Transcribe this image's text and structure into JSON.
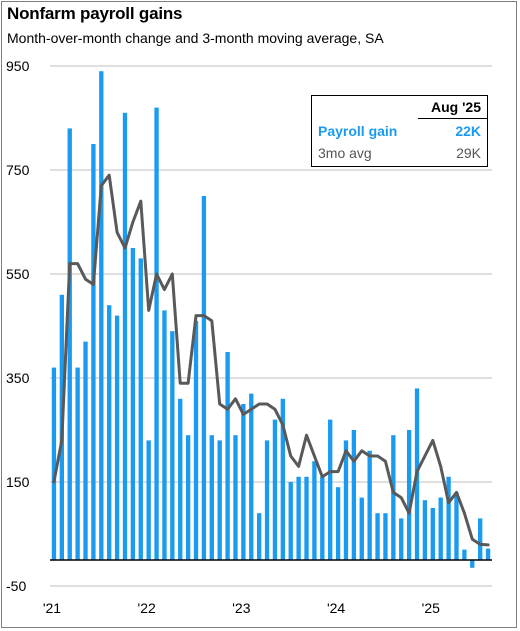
{
  "title": "Nonfarm payroll gains",
  "subtitle": "Month-over-month change and 3-month moving average, SA",
  "legend": {
    "header": "Aug '25",
    "rows": [
      {
        "label": "Payroll gain",
        "value": "22K"
      },
      {
        "label": "3mo avg",
        "value": "29K"
      }
    ]
  },
  "colors": {
    "bar": "#1a9bf0",
    "line": "#595959",
    "grid": "#bfbfbf",
    "axis": "#000000"
  },
  "chart_data": {
    "type": "bar",
    "title": "Nonfarm payroll gains",
    "subtitle": "Month-over-month change and 3-month moving average, SA",
    "ylim": [
      -50,
      950
    ],
    "yticks": [
      -50,
      150,
      350,
      550,
      750,
      950
    ],
    "xtick_labels": [
      "'21",
      "'22",
      "'23",
      "'24",
      "'25"
    ],
    "start_month": "2021-01",
    "grid": true,
    "legend_position": "top-right",
    "series": [
      {
        "name": "Payroll gain",
        "type": "bar",
        "values": [
          370,
          510,
          830,
          370,
          420,
          800,
          940,
          490,
          470,
          860,
          600,
          580,
          230,
          870,
          480,
          440,
          310,
          240,
          460,
          700,
          240,
          230,
          400,
          240,
          300,
          320,
          90,
          230,
          270,
          310,
          150,
          160,
          160,
          190,
          160,
          270,
          140,
          230,
          250,
          120,
          210,
          90,
          90,
          240,
          80,
          250,
          330,
          115,
          100,
          120,
          160,
          130,
          20,
          -15,
          80,
          22
        ]
      },
      {
        "name": "3mo avg",
        "type": "line",
        "values": [
          150,
          230,
          570,
          570,
          540,
          530,
          720,
          740,
          630,
          600,
          650,
          690,
          480,
          550,
          520,
          550,
          340,
          340,
          470,
          470,
          460,
          300,
          290,
          310,
          280,
          290,
          300,
          300,
          290,
          260,
          200,
          180,
          240,
          200,
          160,
          170,
          170,
          210,
          190,
          210,
          200,
          200,
          190,
          130,
          120,
          90,
          170,
          200,
          230,
          180,
          110,
          130,
          90,
          40,
          30,
          29
        ]
      }
    ]
  }
}
